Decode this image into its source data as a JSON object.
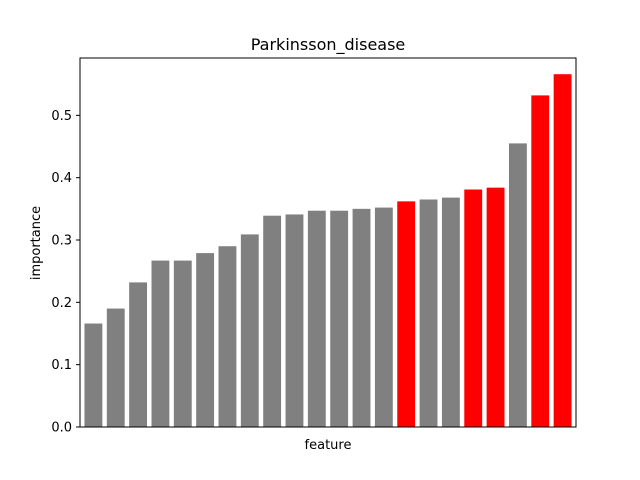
{
  "chart_data": {
    "type": "bar",
    "title": "Parkinsson_disease",
    "xlabel": "feature",
    "ylabel": "importance",
    "ylim": [
      0,
      0.592
    ],
    "yticks": [
      0.0,
      0.1,
      0.2,
      0.3,
      0.4,
      0.5
    ],
    "ytick_labels": [
      "0.0",
      "0.1",
      "0.2",
      "0.3",
      "0.4",
      "0.5"
    ],
    "grid": false,
    "colors": {
      "default": "#808080",
      "highlight": "#ff0000"
    },
    "values": [
      0.166,
      0.19,
      0.232,
      0.267,
      0.267,
      0.279,
      0.29,
      0.309,
      0.339,
      0.341,
      0.347,
      0.347,
      0.35,
      0.352,
      0.362,
      0.365,
      0.368,
      0.381,
      0.384,
      0.455,
      0.532,
      0.566
    ],
    "highlighted": [
      false,
      false,
      false,
      false,
      false,
      false,
      false,
      false,
      false,
      false,
      false,
      false,
      false,
      false,
      true,
      false,
      false,
      true,
      true,
      false,
      true,
      true
    ]
  }
}
